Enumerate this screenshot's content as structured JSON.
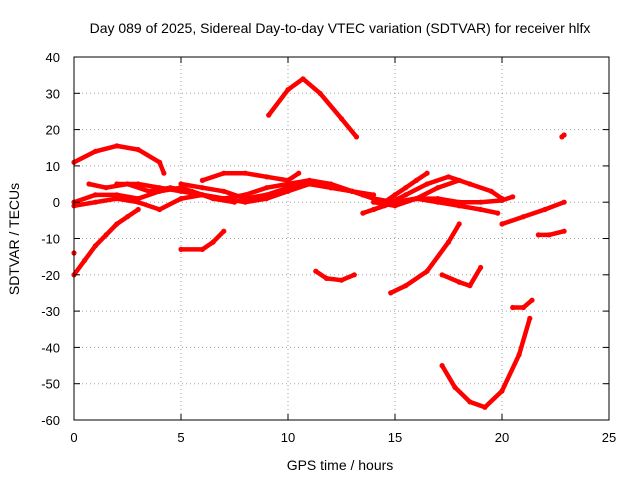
{
  "chart_data": {
    "type": "scatter",
    "title": "Day 089 of 2025, Sidereal Day-to-day VTEC variation (SDTVAR) for receiver hlfx",
    "xlabel": "GPS time / hours",
    "ylabel": "SDTVAR / TECUs",
    "xlim": [
      0,
      25
    ],
    "ylim": [
      -60,
      40
    ],
    "xticks": [
      0,
      5,
      10,
      15,
      20,
      25
    ],
    "yticks": [
      -60,
      -50,
      -40,
      -30,
      -20,
      -10,
      0,
      10,
      20,
      30,
      40
    ],
    "grid": true,
    "legend": "none",
    "color": "#ff0000",
    "series": [
      {
        "x": [
          0.0,
          1.0,
          2.0,
          3.0,
          4.0,
          4.2
        ],
        "y": [
          11,
          14,
          15.5,
          14.5,
          11,
          8
        ]
      },
      {
        "x": [
          0.0,
          0.5,
          1.0,
          1.5,
          2.0,
          2.5,
          3.0
        ],
        "y": [
          -20,
          -16,
          -12,
          -9,
          -6,
          -4,
          -2
        ]
      },
      {
        "x": [
          0.0,
          1.0,
          2.0,
          3.0,
          4.0,
          5.0,
          6.0,
          7.0,
          8.0,
          9.0,
          10.0,
          11.0,
          12.0,
          13.0,
          14.0
        ],
        "y": [
          0,
          2,
          2,
          1,
          3,
          4,
          2,
          1,
          0,
          1,
          3,
          5,
          4,
          3,
          1
        ]
      },
      {
        "x": [
          0.0,
          1.0,
          2.0,
          3.0,
          4.0,
          5.0,
          6.0
        ],
        "y": [
          -1,
          0,
          1,
          0,
          -2,
          1,
          2
        ]
      },
      {
        "x": [
          0.7,
          1.5,
          2.5,
          3.5,
          4.5,
          5.5,
          6.5,
          7.5
        ],
        "y": [
          5,
          4,
          5,
          3,
          4,
          3,
          1,
          0
        ]
      },
      {
        "x": [
          2.0,
          3.0,
          4.0,
          5.0,
          6.0,
          7.0,
          8.0,
          9.0,
          10.0,
          11.0,
          12.0,
          13.0,
          13.5
        ],
        "y": [
          5,
          5,
          4,
          3,
          2,
          1,
          2,
          4,
          5,
          6,
          5,
          3,
          2
        ]
      },
      {
        "x": [
          6.0,
          7.0,
          8.0,
          9.0,
          10.0,
          10.5
        ],
        "y": [
          6,
          8,
          8,
          7,
          6,
          8
        ]
      },
      {
        "x": [
          5.0,
          6.0,
          7.0,
          8.0,
          9.0,
          10.0,
          11.0,
          12.0,
          13.0,
          14.0
        ],
        "y": [
          5,
          4,
          3,
          1,
          2,
          4,
          5,
          4,
          3,
          2
        ]
      },
      {
        "x": [
          9.1,
          10.0,
          10.7,
          11.5,
          12.5,
          13.2
        ],
        "y": [
          24,
          31,
          34,
          30,
          23,
          18
        ]
      },
      {
        "x": [
          11.3,
          11.8,
          12.5,
          13.1
        ],
        "y": [
          -19,
          -21,
          -21.5,
          -20
        ]
      },
      {
        "x": [
          5.0,
          6.0,
          6.5,
          7.0
        ],
        "y": [
          -13,
          -13,
          -11,
          -8
        ]
      },
      {
        "x": [
          0.0
        ],
        "y": [
          -14
        ]
      },
      {
        "x": [
          13.0,
          14.0,
          15.0,
          16.0,
          17.0,
          18.0,
          19.0,
          20.0,
          20.5
        ],
        "y": [
          3,
          1,
          0,
          1,
          1,
          0,
          0,
          0.5,
          1.5
        ]
      },
      {
        "x": [
          13.5,
          14.5,
          15.5,
          16.5,
          17.5,
          18.5,
          19.5,
          20.0
        ],
        "y": [
          -3,
          -1,
          2,
          5,
          7,
          5,
          3,
          1
        ]
      },
      {
        "x": [
          14.0,
          15.0,
          16.0,
          17.0,
          18.0,
          19.0,
          19.8
        ],
        "y": [
          -2,
          0,
          1,
          0,
          -1,
          -2,
          -3
        ]
      },
      {
        "x": [
          14.0,
          14.5,
          15.0,
          15.5,
          16.0,
          16.5
        ],
        "y": [
          1,
          0,
          2,
          4,
          6,
          8
        ]
      },
      {
        "x": [
          14.0,
          15.0,
          16.0,
          17.0,
          18.0
        ],
        "y": [
          0,
          -1,
          1,
          4,
          6
        ]
      },
      {
        "x": [
          14.8,
          15.5,
          16.5,
          17.5,
          18.0
        ],
        "y": [
          -25,
          -23,
          -19,
          -11,
          -6
        ]
      },
      {
        "x": [
          17.2,
          18.0,
          18.5,
          19.0
        ],
        "y": [
          -20,
          -22,
          -23,
          -18
        ]
      },
      {
        "x": [
          17.2,
          17.8,
          18.5,
          19.2,
          20.0,
          20.8,
          21.3
        ],
        "y": [
          -45,
          -51,
          -55,
          -56.5,
          -52,
          -42,
          -32
        ]
      },
      {
        "x": [
          20.0,
          21.0,
          22.0,
          22.9
        ],
        "y": [
          -6,
          -4,
          -2,
          0
        ]
      },
      {
        "x": [
          20.5,
          21.0,
          21.4
        ],
        "y": [
          -29,
          -29,
          -27
        ]
      },
      {
        "x": [
          21.7,
          22.2,
          22.9
        ],
        "y": [
          -9,
          -9,
          -8
        ]
      },
      {
        "x": [
          22.8,
          22.9
        ],
        "y": [
          18,
          18.5
        ]
      }
    ]
  }
}
